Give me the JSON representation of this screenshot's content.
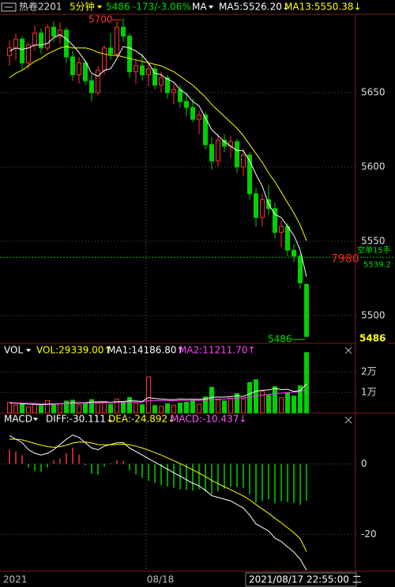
{
  "toolbar": {
    "symbol": "热卷2201",
    "period": "5分钟",
    "price": "5486",
    "change": "-173/-3.06%",
    "indicator": "MA"
  },
  "cursor_label": "2021/08/17 22:55:00 二",
  "chart_data": [
    {
      "type": "candlestick",
      "categories": [
        "2021",
        null,
        null,
        null,
        null,
        null,
        null,
        null,
        null,
        null,
        null,
        null,
        null,
        null,
        null,
        null,
        null,
        null,
        null,
        null,
        null,
        null,
        "08/18",
        null,
        null,
        null,
        null,
        null,
        null,
        null,
        null,
        null,
        null,
        null,
        null,
        null,
        null,
        null,
        null,
        null,
        null,
        null,
        null,
        null,
        null,
        null,
        null,
        null
      ],
      "open": [
        5675,
        5680,
        5686,
        5670,
        5682,
        5690,
        5680,
        5694,
        5688,
        5692,
        5674,
        5662,
        5670,
        5658,
        5650,
        5665,
        5680,
        5676,
        5694,
        5688,
        5664,
        5668,
        5662,
        5666,
        5655,
        5660,
        5650,
        5652,
        5644,
        5640,
        5632,
        5635,
        5615,
        5604,
        5618,
        5614,
        5617,
        5600,
        5608,
        5582,
        5566,
        5578,
        5572,
        5556,
        5560,
        5544,
        5540,
        5521
      ],
      "high": [
        5685,
        5690,
        5688,
        5684,
        5695,
        5693,
        5696,
        5698,
        5697,
        5694,
        5678,
        5674,
        5672,
        5662,
        5668,
        5682,
        5690,
        5698,
        5700,
        5690,
        5672,
        5676,
        5670,
        5668,
        5664,
        5662,
        5656,
        5655,
        5650,
        5646,
        5638,
        5637,
        5620,
        5622,
        5622,
        5621,
        5619,
        5612,
        5610,
        5586,
        5582,
        5588,
        5576,
        5564,
        5562,
        5548,
        5542,
        5522
      ],
      "low": [
        5668,
        5672,
        5665,
        5666,
        5678,
        5676,
        5678,
        5684,
        5683,
        5670,
        5658,
        5656,
        5655,
        5644,
        5648,
        5662,
        5672,
        5674,
        5684,
        5660,
        5656,
        5658,
        5654,
        5652,
        5650,
        5646,
        5642,
        5640,
        5634,
        5630,
        5622,
        5612,
        5598,
        5600,
        5610,
        5606,
        5596,
        5594,
        5578,
        5560,
        5560,
        5568,
        5552,
        5546,
        5540,
        5536,
        5518,
        5486
      ],
      "close": [
        5680,
        5686,
        5670,
        5682,
        5690,
        5680,
        5694,
        5688,
        5692,
        5674,
        5662,
        5670,
        5658,
        5650,
        5665,
        5680,
        5676,
        5694,
        5688,
        5664,
        5668,
        5662,
        5666,
        5655,
        5660,
        5650,
        5652,
        5644,
        5640,
        5632,
        5635,
        5615,
        5604,
        5618,
        5614,
        5617,
        5600,
        5608,
        5582,
        5566,
        5578,
        5572,
        5556,
        5560,
        5544,
        5540,
        5522,
        5486
      ],
      "up_color": "#ff3232",
      "down_color": "#00d000",
      "series": [
        {
          "name": "MA5:5526.20↓",
          "color": "#ffffff",
          "values": [
            5678,
            5680,
            5679,
            5680,
            5682,
            5682,
            5683,
            5687,
            5689,
            5686,
            5682,
            5677,
            5671,
            5663,
            5661,
            5665,
            5666,
            5673,
            5681,
            5680,
            5678,
            5675,
            5670,
            5663,
            5662,
            5659,
            5657,
            5652,
            5649,
            5644,
            5641,
            5633,
            5625,
            5621,
            5617,
            5614,
            5611,
            5611,
            5604,
            5595,
            5587,
            5575,
            5568,
            5566,
            5560,
            5554,
            5544,
            5526.2
          ]
        },
        {
          "name": "MA13:5550.38↓",
          "color": "#ffff00",
          "values": [
            5660,
            5663,
            5665,
            5668,
            5671,
            5673,
            5676,
            5678,
            5680,
            5681,
            5680,
            5680,
            5680,
            5679,
            5677,
            5676,
            5675,
            5675,
            5674,
            5673,
            5672,
            5671,
            5670,
            5669,
            5668,
            5666,
            5664,
            5661,
            5658,
            5655,
            5651,
            5647,
            5642,
            5638,
            5634,
            5630,
            5626,
            5621,
            5615,
            5609,
            5603,
            5596,
            5590,
            5583,
            5576,
            5569,
            5561,
            5550.38
          ]
        }
      ],
      "ylim": [
        5482.4,
        5702.7
      ],
      "yticks": [
        5500,
        5550,
        5600,
        5650
      ],
      "grid": true,
      "high_label": "5700",
      "low_label": "5486",
      "last_label": "5486",
      "order": {
        "value": 5539.2,
        "label": "5539.2",
        "text": "空单15手",
        "qty": "7980"
      }
    },
    {
      "type": "bar",
      "title": "VOL",
      "label": "VOL:29339.00↑",
      "values": [
        5200,
        3800,
        4600,
        3000,
        4200,
        3500,
        6000,
        3800,
        4400,
        5800,
        6200,
        4000,
        4800,
        6500,
        5000,
        5500,
        4200,
        6800,
        5200,
        7500,
        4600,
        4000,
        17500,
        3600,
        3200,
        4500,
        3800,
        4800,
        5200,
        6000,
        4200,
        7800,
        12500,
        6400,
        5800,
        7200,
        9400,
        6800,
        14800,
        16200,
        10500,
        8600,
        12800,
        7400,
        9800,
        8200,
        13200,
        29339
      ],
      "series": [
        {
          "name": "MA1:14186.80↑",
          "color": "#ffffff",
          "values": [
            4800,
            4700,
            4500,
            4300,
            4200,
            4000,
            4200,
            4300,
            4400,
            4700,
            5000,
            4900,
            5000,
            5300,
            5400,
            5400,
            5200,
            5500,
            5600,
            5900,
            5800,
            5600,
            7500,
            7000,
            6800,
            6600,
            6500,
            6800,
            6700,
            6700,
            6600,
            6800,
            7600,
            7700,
            7700,
            8000,
            8300,
            8100,
            9300,
            10600,
            11000,
            11200,
            11900,
            11300,
            11500,
            10500,
            10900,
            14186.8
          ]
        },
        {
          "name": "MA2:11211.70↑",
          "color": "#ff40ff",
          "values": [
            5000,
            4900,
            4800,
            4700,
            4600,
            4500,
            4500,
            4500,
            4500,
            4600,
            4700,
            4700,
            4800,
            4900,
            4900,
            5000,
            5000,
            5100,
            5200,
            5300,
            5300,
            5300,
            6000,
            6000,
            6000,
            6000,
            5900,
            6000,
            6000,
            6100,
            6100,
            6200,
            6600,
            6700,
            6800,
            7000,
            7200,
            7300,
            7800,
            8300,
            8700,
            9000,
            9400,
            9600,
            9900,
            10100,
            10400,
            11211.7
          ]
        }
      ],
      "ylim": [
        0,
        33077
      ],
      "yticks": [
        {
          "value": 20000,
          "label": "2万"
        },
        {
          "value": 10000,
          "label": "1万"
        }
      ]
    },
    {
      "type": "macd",
      "title": "MACD",
      "name": "MACD:-10.437↓",
      "values": [
        4,
        3.5,
        2.5,
        -1,
        -2,
        -2.2,
        -1,
        1,
        1.5,
        3,
        4.6,
        2.6,
        -0.4,
        -2.8,
        -3,
        -0.8,
        0.2,
        1,
        0.8,
        -1.8,
        -3,
        -4,
        -4.8,
        -5.4,
        -6,
        -6.4,
        -6.8,
        -7.2,
        -7.4,
        -7.6,
        -7.2,
        -7.8,
        -8.6,
        -7.8,
        -7,
        -6.4,
        -6.6,
        -6.8,
        -8.6,
        -11,
        -10.4,
        -10,
        -11.2,
        -10.6,
        -10.8,
        -11,
        -11.6,
        -10.437
      ],
      "series": [
        {
          "name": "DIFF:-30.111↓",
          "color": "#ffffff",
          "values": [
            8,
            7,
            6,
            4,
            3,
            2.5,
            3,
            4,
            5.5,
            7,
            8.2,
            7.5,
            6,
            4.5,
            4,
            5,
            5.5,
            6,
            6,
            4.5,
            3.5,
            2.5,
            1.5,
            0.5,
            -0.5,
            -1.5,
            -2.5,
            -3.5,
            -4.5,
            -5.5,
            -6.2,
            -7.5,
            -9,
            -9.5,
            -10,
            -10.5,
            -11.5,
            -12.5,
            -14.5,
            -17,
            -18,
            -19,
            -21,
            -22,
            -23.5,
            -25,
            -27,
            -30.111
          ]
        },
        {
          "name": "DEA:-24.892↓",
          "color": "#ffff00",
          "values": [
            7,
            7,
            6.8,
            6.3,
            5.8,
            5.3,
            4.9,
            4.7,
            4.9,
            5.3,
            5.9,
            6.2,
            6.2,
            5.9,
            5.5,
            5.4,
            5.4,
            5.5,
            5.6,
            5.4,
            5,
            4.5,
            3.9,
            3.2,
            2.5,
            1.7,
            0.9,
            0.1,
            -0.8,
            -1.7,
            -2.6,
            -3.6,
            -4.7,
            -5.6,
            -6.5,
            -7.3,
            -8.2,
            -9.1,
            -10.2,
            -11.5,
            -12.8,
            -14,
            -15.4,
            -16.7,
            -18.1,
            -19.5,
            -21.2,
            -24.892
          ]
        }
      ],
      "ylim": [
        -30.4,
        14.2
      ],
      "yticks": [
        0,
        -20
      ]
    }
  ]
}
